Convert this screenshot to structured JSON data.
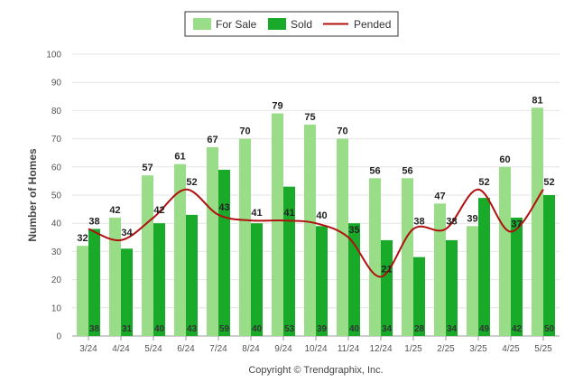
{
  "chart_data": {
    "type": "bar",
    "categories": [
      "3/24",
      "4/24",
      "5/24",
      "6/24",
      "7/24",
      "8/24",
      "9/24",
      "10/24",
      "11/24",
      "12/24",
      "1/25",
      "2/25",
      "3/25",
      "4/25",
      "5/25"
    ],
    "series": [
      {
        "name": "For Sale",
        "type": "bar",
        "color": "#99dd88",
        "values": [
          32,
          42,
          57,
          61,
          67,
          70,
          79,
          75,
          70,
          56,
          56,
          47,
          39,
          60,
          81
        ]
      },
      {
        "name": "Sold",
        "type": "bar",
        "color": "#1aaa2a",
        "values": [
          38,
          31,
          40,
          43,
          59,
          40,
          53,
          39,
          40,
          34,
          28,
          34,
          49,
          42,
          50
        ]
      },
      {
        "name": "Pended",
        "type": "line",
        "color": "#b01010",
        "values": [
          38,
          34,
          42,
          52,
          43,
          41,
          41,
          40,
          35,
          21,
          38,
          38,
          52,
          37,
          52
        ]
      }
    ],
    "ylabel": "Number of Homes",
    "yticks": [
      0,
      10,
      20,
      30,
      40,
      50,
      60,
      70,
      80,
      90,
      100
    ],
    "ylim": [
      0,
      100
    ],
    "grid": true,
    "legend_position": "top-center",
    "caption": "Copyright © Trendgraphix, Inc."
  }
}
